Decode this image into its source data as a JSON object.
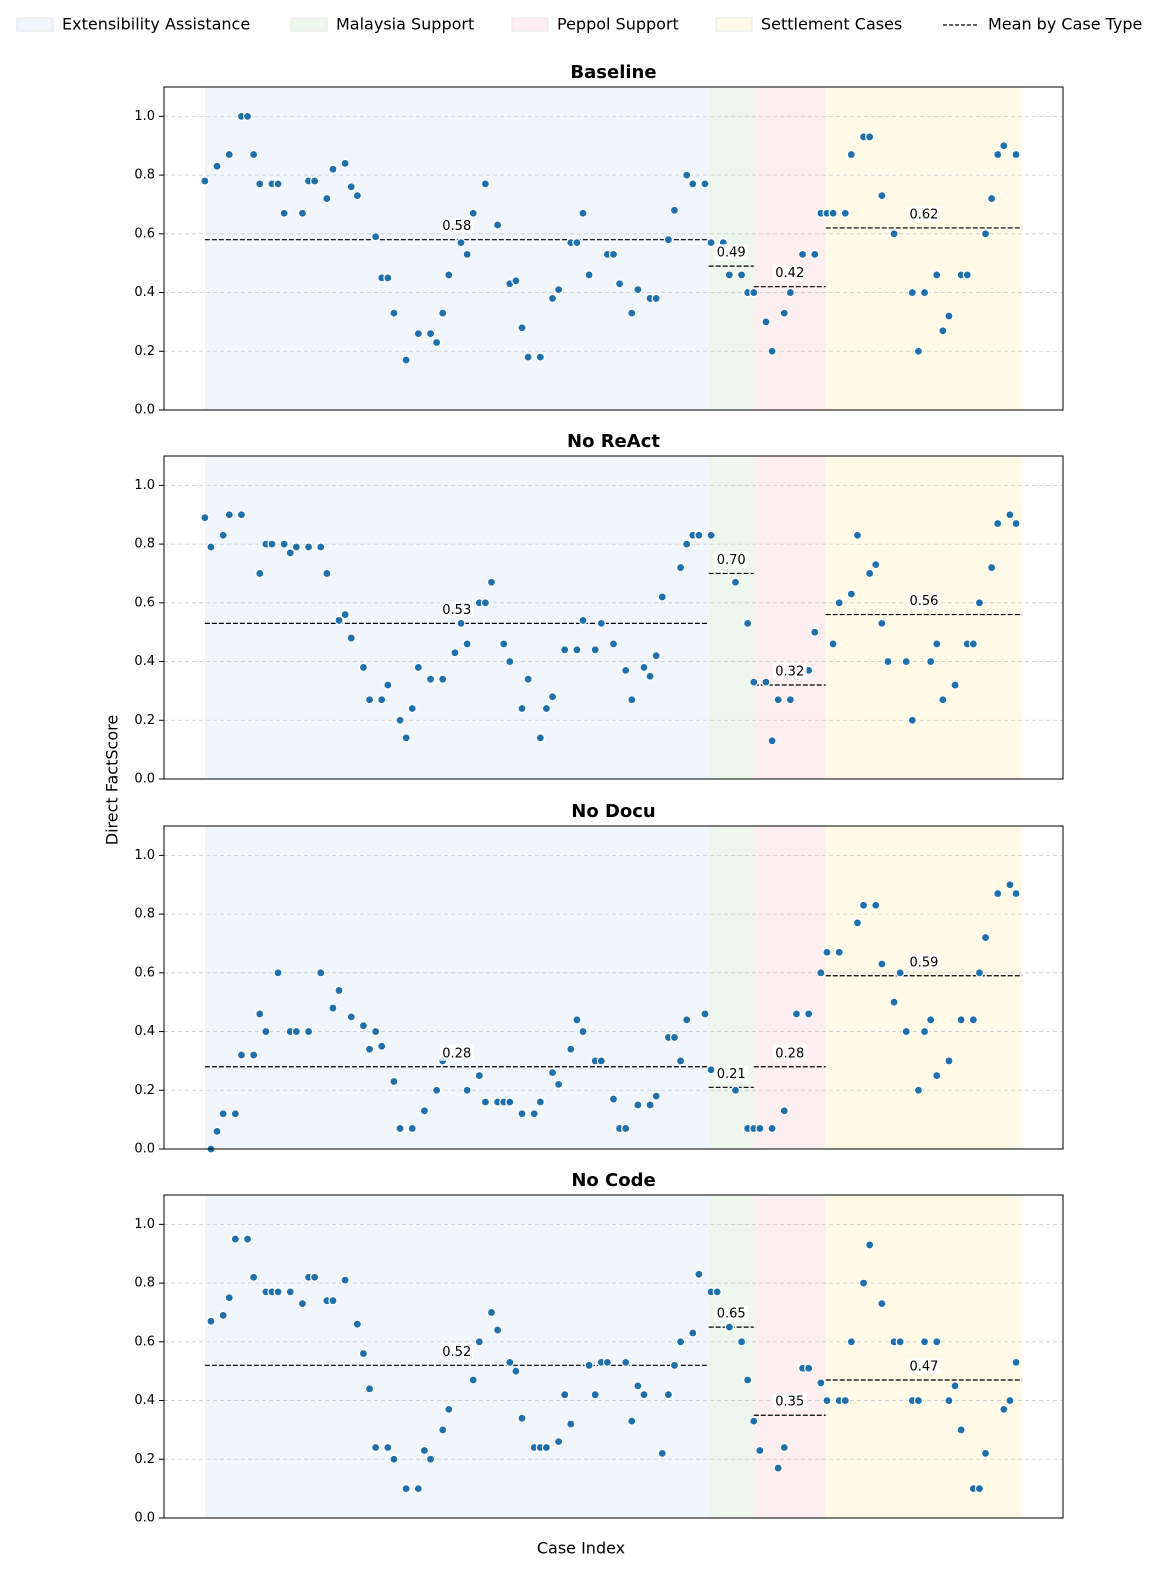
{
  "x_label": "Case Index",
  "y_label": "Direct FactScore",
  "mean_label": "Mean by Case Type",
  "regions": [
    {
      "name": "Extensibility Assistance",
      "color": "#f0f6fb",
      "x0": 0,
      "x1": 82.6
    },
    {
      "name": "Malaysia Support",
      "color": "#eef7ee",
      "x0": 82.6,
      "x1": 90
    },
    {
      "name": "Peppol Support",
      "color": "#fdeef1",
      "x0": 90,
      "x1": 101.8
    },
    {
      "name": "Settlement Cases",
      "color": "#fefae6",
      "x0": 101.8,
      "x1": 134
    }
  ],
  "chart_data": [
    {
      "type": "scatter",
      "title": "Baseline",
      "color": "#1f6fab",
      "grid": true,
      "xlim": [
        -6.7,
        140.7
      ],
      "ylim": [
        0,
        1.1
      ],
      "yticks": [
        {
          "value": 0,
          "label": "0.0"
        },
        0.2,
        0.4,
        0.6,
        0.8,
        {
          "value": 1,
          "label": "1.0"
        }
      ],
      "means": [
        0.58,
        0.49,
        0.42,
        0.62
      ],
      "x": [
        0,
        2,
        4,
        6,
        7,
        8,
        9,
        11,
        12,
        13,
        16,
        17,
        18,
        20,
        21,
        23,
        24,
        25,
        28,
        29,
        30,
        31,
        33,
        35,
        37,
        38,
        39,
        40,
        42,
        43,
        44,
        46,
        48,
        50,
        51,
        52,
        53,
        55,
        57,
        58,
        60,
        61,
        62,
        63,
        66,
        67,
        68,
        70,
        71,
        73,
        74,
        76,
        77,
        79,
        80,
        82,
        83,
        85,
        86,
        88,
        89,
        90,
        92,
        93,
        95,
        96,
        98,
        100,
        101,
        102,
        103,
        105,
        106,
        108,
        109,
        111,
        113,
        116,
        117,
        118,
        120,
        121,
        122,
        124,
        125,
        128,
        129,
        130,
        131,
        133
      ],
      "values": [
        0.78,
        0.83,
        0.87,
        1.0,
        1.0,
        0.87,
        0.77,
        0.77,
        0.77,
        0.67,
        0.67,
        0.78,
        0.78,
        0.72,
        0.82,
        0.84,
        0.76,
        0.73,
        0.59,
        0.45,
        0.45,
        0.33,
        0.17,
        0.26,
        0.26,
        0.23,
        0.33,
        0.46,
        0.57,
        0.53,
        0.67,
        0.77,
        0.63,
        0.43,
        0.44,
        0.28,
        0.18,
        0.18,
        0.38,
        0.41,
        0.57,
        0.57,
        0.67,
        0.46,
        0.53,
        0.53,
        0.43,
        0.33,
        0.41,
        0.38,
        0.38,
        0.58,
        0.68,
        0.8,
        0.77,
        0.77,
        0.57,
        0.57,
        0.46,
        0.46,
        0.4,
        0.4,
        0.3,
        0.2,
        0.33,
        0.4,
        0.53,
        0.53,
        0.67,
        0.67,
        0.67,
        0.67,
        0.87,
        0.93,
        0.93,
        0.73,
        0.6,
        0.4,
        0.2,
        0.4,
        0.46,
        0.27,
        0.32,
        0.46,
        0.46,
        0.6,
        0.72,
        0.87,
        0.9,
        0.87
      ]
    },
    {
      "type": "scatter",
      "title": "No ReAct",
      "color": "#1f6fab",
      "grid": true,
      "xlim": [
        -6.7,
        140.7
      ],
      "ylim": [
        0,
        1.1
      ],
      "yticks": [
        {
          "value": 0,
          "label": "0.0"
        },
        0.2,
        0.4,
        0.6,
        0.8,
        {
          "value": 1,
          "label": "1.0"
        }
      ],
      "means": [
        0.53,
        {
          "value": 0.7,
          "label": "0.70"
        },
        0.32,
        0.56
      ],
      "x": [
        0,
        1,
        3,
        4,
        6,
        9,
        10,
        11,
        13,
        14,
        15,
        17,
        19,
        20,
        22,
        23,
        24,
        26,
        27,
        29,
        30,
        32,
        33,
        34,
        35,
        37,
        39,
        41,
        42,
        43,
        45,
        46,
        47,
        49,
        50,
        52,
        53,
        55,
        56,
        57,
        59,
        61,
        62,
        64,
        65,
        67,
        69,
        70,
        72,
        73,
        74,
        75,
        78,
        79,
        80,
        81,
        83,
        87,
        89,
        90,
        92,
        93,
        94,
        96,
        99,
        100,
        103,
        104,
        106,
        107,
        109,
        110,
        111,
        112,
        115,
        116,
        119,
        120,
        121,
        123,
        125,
        126,
        127,
        129,
        130,
        132,
        133
      ],
      "values": [
        0.89,
        0.79,
        0.83,
        0.9,
        0.9,
        0.7,
        0.8,
        0.8,
        0.8,
        0.77,
        0.79,
        0.79,
        0.79,
        0.7,
        0.54,
        0.56,
        0.48,
        0.38,
        0.27,
        0.27,
        0.32,
        0.2,
        0.14,
        0.24,
        0.38,
        0.34,
        0.34,
        0.43,
        0.53,
        0.46,
        0.6,
        0.6,
        0.67,
        0.46,
        0.4,
        0.24,
        0.34,
        0.14,
        0.24,
        0.28,
        0.44,
        0.44,
        0.54,
        0.44,
        0.53,
        0.46,
        0.37,
        0.27,
        0.38,
        0.35,
        0.42,
        0.62,
        0.72,
        0.8,
        0.83,
        0.83,
        0.83,
        0.67,
        0.53,
        0.33,
        0.33,
        0.13,
        0.27,
        0.27,
        0.37,
        0.5,
        0.46,
        0.6,
        0.63,
        0.83,
        0.7,
        0.73,
        0.53,
        0.4,
        0.4,
        0.2,
        0.4,
        0.46,
        0.27,
        0.32,
        0.46,
        0.46,
        0.6,
        0.72,
        0.87,
        0.9,
        0.87
      ]
    },
    {
      "type": "scatter",
      "title": "No Docu",
      "color": "#1f6fab",
      "grid": true,
      "xlim": [
        -6.7,
        140.7
      ],
      "ylim": [
        0,
        1.1
      ],
      "yticks": [
        {
          "value": 0,
          "label": "0.0"
        },
        0.2,
        0.4,
        0.6,
        0.8,
        {
          "value": 1,
          "label": "1.0"
        }
      ],
      "means": [
        0.28,
        0.21,
        0.28,
        0.59
      ],
      "x": [
        1,
        2,
        3,
        5,
        6,
        8,
        9,
        10,
        12,
        14,
        15,
        17,
        19,
        21,
        22,
        24,
        26,
        27,
        28,
        29,
        31,
        32,
        34,
        36,
        38,
        39,
        43,
        45,
        46,
        48,
        49,
        50,
        52,
        54,
        55,
        57,
        58,
        60,
        61,
        62,
        64,
        65,
        67,
        68,
        69,
        71,
        73,
        74,
        76,
        77,
        78,
        79,
        82,
        83,
        87,
        89,
        90,
        91,
        93,
        95,
        97,
        99,
        101,
        102,
        104,
        107,
        108,
        110,
        111,
        113,
        114,
        115,
        117,
        118,
        119,
        120,
        122,
        124,
        126,
        127,
        128,
        130,
        132,
        133
      ],
      "values": [
        0.0,
        0.06,
        0.12,
        0.12,
        0.32,
        0.32,
        0.46,
        0.4,
        0.6,
        0.4,
        0.4,
        0.4,
        0.6,
        0.48,
        0.54,
        0.45,
        0.42,
        0.34,
        0.4,
        0.35,
        0.23,
        0.07,
        0.07,
        0.13,
        0.2,
        0.3,
        0.2,
        0.25,
        0.16,
        0.16,
        0.16,
        0.16,
        0.12,
        0.12,
        0.16,
        0.26,
        0.22,
        0.34,
        0.44,
        0.4,
        0.3,
        0.3,
        0.17,
        0.07,
        0.07,
        0.15,
        0.15,
        0.18,
        0.38,
        0.38,
        0.3,
        0.44,
        0.46,
        0.27,
        0.2,
        0.07,
        0.07,
        0.07,
        0.07,
        0.13,
        0.46,
        0.46,
        0.6,
        0.67,
        0.67,
        0.77,
        0.83,
        0.83,
        0.63,
        0.5,
        0.6,
        0.4,
        0.2,
        0.4,
        0.44,
        0.25,
        0.3,
        0.44,
        0.44,
        0.6,
        0.72,
        0.87,
        0.9,
        0.87
      ]
    },
    {
      "type": "scatter",
      "title": "No Code",
      "color": "#1f6fab",
      "grid": true,
      "xlim": [
        -6.7,
        140.7
      ],
      "ylim": [
        0,
        1.1
      ],
      "yticks": [
        {
          "value": 0,
          "label": "0.0"
        },
        0.2,
        0.4,
        0.6,
        0.8,
        {
          "value": 1,
          "label": "1.0"
        }
      ],
      "means": [
        0.52,
        0.65,
        0.35,
        0.47
      ],
      "x": [
        1,
        3,
        4,
        5,
        7,
        8,
        10,
        11,
        12,
        14,
        16,
        17,
        18,
        20,
        21,
        23,
        25,
        26,
        27,
        28,
        30,
        31,
        33,
        35,
        36,
        37,
        39,
        40,
        44,
        45,
        47,
        48,
        50,
        51,
        52,
        54,
        55,
        56,
        58,
        59,
        60,
        63,
        64,
        65,
        66,
        69,
        70,
        71,
        72,
        75,
        76,
        77,
        78,
        80,
        81,
        83,
        84,
        86,
        88,
        89,
        90,
        91,
        94,
        95,
        98,
        99,
        101,
        102,
        104,
        105,
        106,
        108,
        109,
        111,
        113,
        114,
        116,
        117,
        118,
        120,
        122,
        123,
        124,
        126,
        127,
        128,
        131,
        132,
        133
      ],
      "values": [
        0.67,
        0.69,
        0.75,
        0.95,
        0.95,
        0.82,
        0.77,
        0.77,
        0.77,
        0.77,
        0.73,
        0.82,
        0.82,
        0.74,
        0.74,
        0.81,
        0.66,
        0.56,
        0.44,
        0.24,
        0.24,
        0.2,
        0.1,
        0.1,
        0.23,
        0.2,
        0.3,
        0.37,
        0.47,
        0.6,
        0.7,
        0.64,
        0.53,
        0.5,
        0.34,
        0.24,
        0.24,
        0.24,
        0.26,
        0.42,
        0.32,
        0.52,
        0.42,
        0.53,
        0.53,
        0.53,
        0.33,
        0.45,
        0.42,
        0.22,
        0.42,
        0.52,
        0.6,
        0.63,
        0.83,
        0.77,
        0.77,
        0.65,
        0.6,
        0.47,
        0.33,
        0.23,
        0.17,
        0.24,
        0.51,
        0.51,
        0.46,
        0.4,
        0.4,
        0.4,
        0.6,
        0.8,
        0.93,
        0.73,
        0.6,
        0.6,
        0.4,
        0.4,
        0.6,
        0.6,
        0.4,
        0.45,
        0.3,
        0.1,
        0.1,
        0.22,
        0.37,
        0.4,
        0.53
      ]
    }
  ]
}
